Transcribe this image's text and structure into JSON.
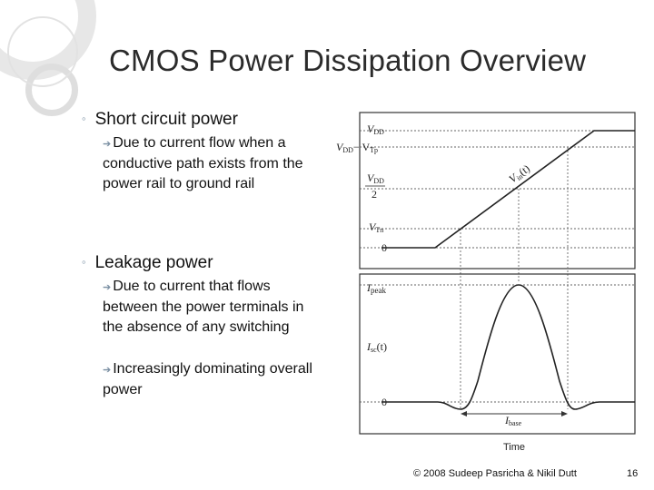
{
  "slide": {
    "title": "CMOS Power Dissipation Overview",
    "bullets": [
      {
        "label": "Short circuit power",
        "sub": [
          "Due to current flow when a conductive path exists from the power rail to ground rail"
        ]
      },
      {
        "label": "Leakage power",
        "sub": [
          "Due to current that flows between the power terminals in the absence of any switching",
          "Increasingly dominating overall power"
        ]
      }
    ],
    "footer": {
      "copyright": "© 2008 Sudeep Pasricha & Nikil Dutt",
      "page_number": "16"
    }
  },
  "figure": {
    "top_plot": {
      "y_labels": [
        "V",
        "DD",
        "V",
        "DD",
        "− V",
        "Tp",
        "V",
        "DD",
        "2",
        "V",
        "Tn",
        "0"
      ],
      "curve_label": "V",
      "curve_sub": "in",
      "curve_suffix": "(t)"
    },
    "bottom_plot": {
      "y_labels": [
        "I",
        "peak",
        "I",
        "sc",
        "(t)",
        "0"
      ],
      "base_label": "I",
      "base_sub": "base",
      "x_label": "Time"
    }
  }
}
